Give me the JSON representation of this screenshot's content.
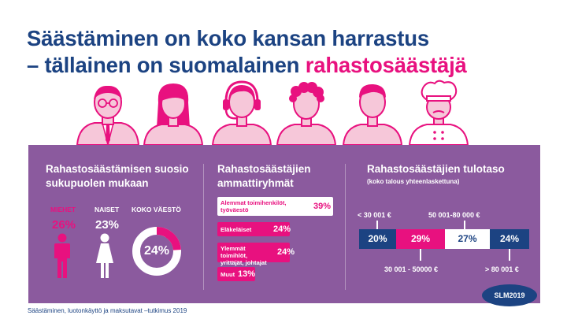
{
  "title": {
    "line1": "Säästäminen on koko kansan harrastus",
    "line2_prefix": "– tällainen on suomalainen ",
    "line2_accent": "rahastosäästäjä"
  },
  "people_icons": [
    "businessman-icon",
    "woman-icon",
    "headset-operator-icon",
    "curly-hair-person-icon",
    "man-icon",
    "chef-icon"
  ],
  "colors": {
    "navy": "#1c4382",
    "magenta": "#e8117f",
    "purple": "#8b5a9e",
    "white": "#ffffff"
  },
  "gender": {
    "title": "Rahastosäästämisen suosio sukupuolen mukaan",
    "items": [
      {
        "label": "MIEHET",
        "pct": "26%",
        "icon": "male-icon"
      },
      {
        "label": "NAISET",
        "pct": "23%",
        "icon": "female-icon"
      },
      {
        "label": "KOKO VÄESTÖ",
        "pct": "24%",
        "icon": "donut-icon"
      }
    ]
  },
  "occupation": {
    "title": "Rahastosäästäjien ammattiryhmät",
    "items": [
      {
        "label": "Alemmat toimihenkilöt, työväestö",
        "pct": "39%"
      },
      {
        "label": "Eläkeläiset",
        "pct": "24%"
      },
      {
        "label": "Ylemmät toimihlöt, yrittäjät, johtajat",
        "pct": "24%"
      },
      {
        "label": "Muut",
        "pct": "13%"
      }
    ]
  },
  "income": {
    "title": "Rahastosäästäjien tulotaso",
    "subtitle": "(koko talous yhteenlaskettuna)",
    "segments": [
      {
        "label": "< 30 001 €",
        "pct": "20%"
      },
      {
        "label": "30 001 - 50000 €",
        "pct": "29%"
      },
      {
        "label": "50 001-80 000 €",
        "pct": "27%"
      },
      {
        "label": "> 80 001 €",
        "pct": "24%"
      }
    ]
  },
  "chart_data": [
    {
      "type": "bar",
      "title": "Rahastosäästämisen suosio sukupuolen mukaan",
      "categories": [
        "MIEHET",
        "NAISET",
        "KOKO VÄESTÖ"
      ],
      "values": [
        26,
        23,
        24
      ]
    },
    {
      "type": "bar",
      "title": "Rahastosäästäjien ammattiryhmät",
      "categories": [
        "Alemmat toimihenkilöt, työväestö",
        "Eläkeläiset",
        "Ylemmät toimihlöt, yrittäjät, johtajat",
        "Muut"
      ],
      "values": [
        39,
        24,
        24,
        13
      ]
    },
    {
      "type": "bar",
      "title": "Rahastosäästäjien tulotaso",
      "subtitle": "(koko talous yhteenlaskettuna)",
      "categories": [
        "< 30 001 €",
        "30 001 - 50000 €",
        "50 001-80 000 €",
        "> 80 001 €"
      ],
      "values": [
        20,
        29,
        27,
        24
      ]
    }
  ],
  "footer": "Säästäminen, luotonkäyttö ja maksutavat –tutkimus 2019",
  "badge": "SLM2019"
}
